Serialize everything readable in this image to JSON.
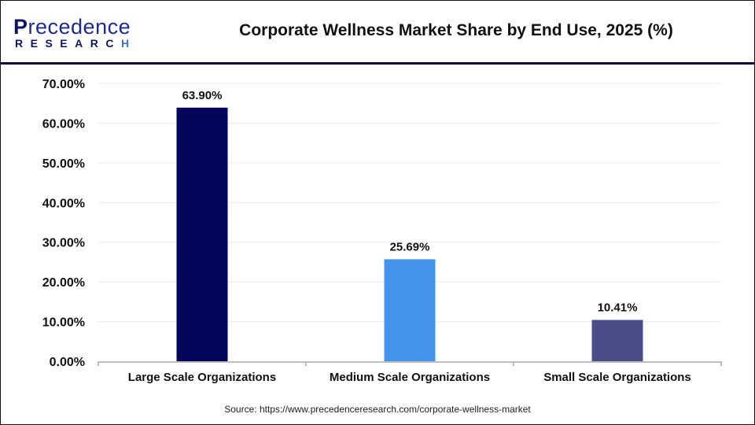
{
  "header": {
    "logo_text": "Precedence",
    "logo_sub": "RESEARCH",
    "title": "Corporate Wellness Market Share by End Use, 2025 (%)"
  },
  "source": "Source: https://www.precedenceresearch.com/corporate-wellness-market",
  "chart_data": {
    "type": "bar",
    "title": "Corporate Wellness Market Share by End Use, 2025 (%)",
    "categories": [
      "Large Scale Organizations",
      "Medium Scale Organizations",
      "Small Scale Organizations"
    ],
    "values": [
      63.9,
      25.69,
      10.41
    ],
    "data_labels": [
      "63.90%",
      "25.69%",
      "10.41%"
    ],
    "colors": [
      "#03065a",
      "#4494ee",
      "#4a4e86"
    ],
    "ylim": [
      0,
      70
    ],
    "yticks": [
      "0.00%",
      "10.00%",
      "20.00%",
      "30.00%",
      "40.00%",
      "50.00%",
      "60.00%",
      "70.00%"
    ],
    "grid": true,
    "legend": "none"
  }
}
